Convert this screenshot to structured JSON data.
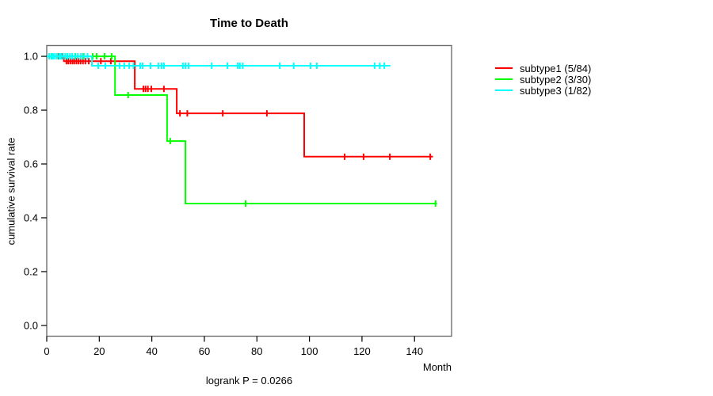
{
  "chart_data": {
    "type": "line",
    "subtype": "kaplan-meier-step",
    "title": "Time to Death",
    "xlabel": "Month",
    "ylabel": "cumulative survival rate",
    "annotation": "logrank P = 0.0266",
    "xlim": [
      0,
      154.1
    ],
    "ylim": [
      -0.04,
      1.04
    ],
    "x_ticks": [
      0,
      20,
      40,
      60,
      80,
      100,
      120,
      140
    ],
    "x_tick_labels": [
      "0",
      "20",
      "40",
      "60",
      "80",
      "100",
      "120",
      "140"
    ],
    "y_ticks": [
      0.0,
      0.2,
      0.4,
      0.6,
      0.8,
      1.0
    ],
    "y_tick_labels": [
      "0.0",
      "0.2",
      "0.4",
      "0.6",
      "0.8",
      "1.0"
    ],
    "grid": false,
    "legend_position": "right-outside",
    "frame_color": "#6e6e6e",
    "tick_color": "#000000",
    "series": [
      {
        "name": "subtype1 (5/84)",
        "color": "#ff0000",
        "steps": [
          [
            0,
            1.0
          ],
          [
            6.5,
            0.982
          ],
          [
            33.5,
            0.879
          ],
          [
            49.5,
            0.788
          ],
          [
            98,
            0.627
          ]
        ],
        "end": 147,
        "censors": [
          [
            4.5,
            1.0
          ],
          [
            5.6,
            1.0
          ],
          [
            7.5,
            0.982
          ],
          [
            8.2,
            0.982
          ],
          [
            9.0,
            0.982
          ],
          [
            9.8,
            0.982
          ],
          [
            10.5,
            0.982
          ],
          [
            11.3,
            0.982
          ],
          [
            12.1,
            0.982
          ],
          [
            12.9,
            0.982
          ],
          [
            13.8,
            0.982
          ],
          [
            14.7,
            0.982
          ],
          [
            16.0,
            0.982
          ],
          [
            20.6,
            0.982
          ],
          [
            24.4,
            0.982
          ],
          [
            36.8,
            0.879
          ],
          [
            37.6,
            0.879
          ],
          [
            38.5,
            0.879
          ],
          [
            39.8,
            0.879
          ],
          [
            44.6,
            0.879
          ],
          [
            50.7,
            0.788
          ],
          [
            53.5,
            0.788
          ],
          [
            67.0,
            0.788
          ],
          [
            83.8,
            0.788
          ],
          [
            113.4,
            0.627
          ],
          [
            120.6,
            0.627
          ],
          [
            130.6,
            0.627
          ],
          [
            146.0,
            0.627
          ]
        ]
      },
      {
        "name": "subtype2 (3/30)",
        "color": "#00ff00",
        "steps": [
          [
            0,
            1.0
          ],
          [
            26.0,
            0.856
          ],
          [
            45.8,
            0.685
          ],
          [
            52.8,
            0.453
          ]
        ],
        "end": 148.5,
        "censors": [
          [
            1.8,
            1.0
          ],
          [
            4.8,
            1.0
          ],
          [
            7.8,
            1.0
          ],
          [
            10.9,
            1.0
          ],
          [
            13.9,
            1.0
          ],
          [
            17.5,
            1.0
          ],
          [
            19.0,
            1.0
          ],
          [
            22.0,
            1.0
          ],
          [
            24.7,
            1.0
          ],
          [
            31.0,
            0.856
          ],
          [
            47.0,
            0.685
          ],
          [
            75.7,
            0.453
          ],
          [
            148.0,
            0.453
          ]
        ]
      },
      {
        "name": "subtype3 (1/82)",
        "color": "#00ffff",
        "steps": [
          [
            0,
            1.0
          ],
          [
            17.2,
            0.965
          ]
        ],
        "end": 130.8,
        "censors": [
          [
            0.9,
            1.0
          ],
          [
            1.7,
            1.0
          ],
          [
            2.4,
            1.0
          ],
          [
            3.1,
            1.0
          ],
          [
            3.9,
            1.0
          ],
          [
            4.7,
            1.0
          ],
          [
            5.4,
            1.0
          ],
          [
            6.2,
            1.0
          ],
          [
            7.0,
            1.0
          ],
          [
            7.9,
            1.0
          ],
          [
            8.8,
            1.0
          ],
          [
            9.7,
            1.0
          ],
          [
            10.7,
            1.0
          ],
          [
            11.8,
            1.0
          ],
          [
            13.0,
            1.0
          ],
          [
            14.2,
            1.0
          ],
          [
            15.5,
            1.0
          ],
          [
            19.6,
            0.965
          ],
          [
            22.3,
            0.965
          ],
          [
            27.7,
            0.965
          ],
          [
            29.5,
            0.965
          ],
          [
            31.4,
            0.965
          ],
          [
            33.0,
            0.965
          ],
          [
            35.6,
            0.965
          ],
          [
            36.5,
            0.965
          ],
          [
            39.5,
            0.965
          ],
          [
            42.5,
            0.965
          ],
          [
            43.7,
            0.965
          ],
          [
            44.6,
            0.965
          ],
          [
            51.8,
            0.965
          ],
          [
            52.8,
            0.965
          ],
          [
            54.0,
            0.965
          ],
          [
            62.8,
            0.965
          ],
          [
            68.8,
            0.965
          ],
          [
            72.7,
            0.965
          ],
          [
            73.5,
            0.965
          ],
          [
            74.6,
            0.965
          ],
          [
            88.7,
            0.965
          ],
          [
            94.0,
            0.965
          ],
          [
            100.4,
            0.965
          ],
          [
            102.8,
            0.965
          ],
          [
            124.8,
            0.965
          ],
          [
            126.8,
            0.965
          ],
          [
            128.5,
            0.965
          ]
        ]
      }
    ]
  }
}
